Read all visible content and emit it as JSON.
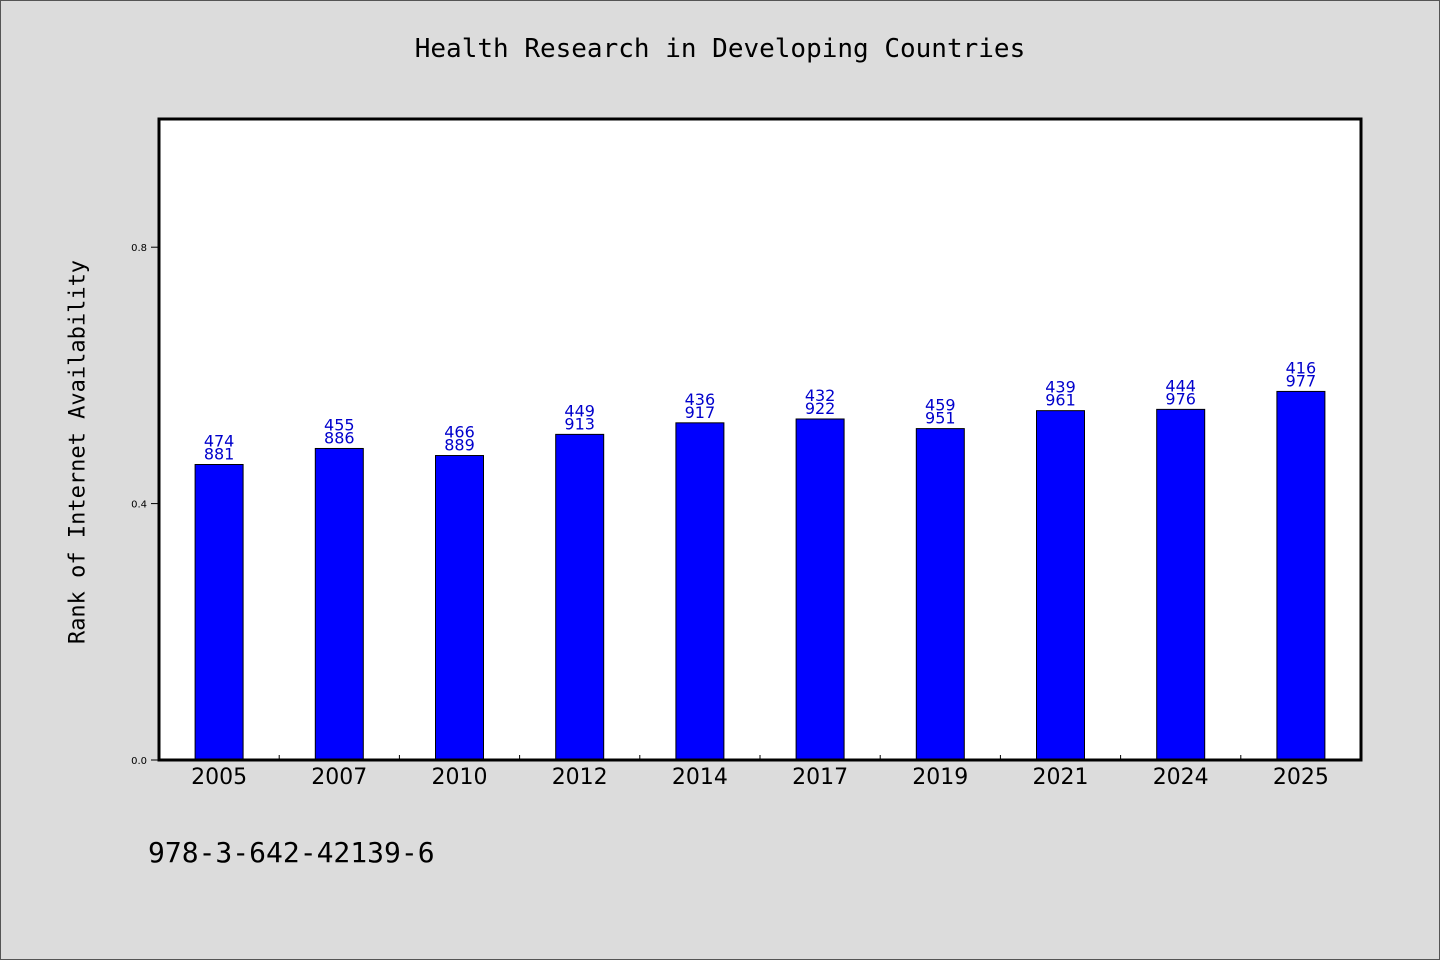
{
  "chart_data": {
    "type": "bar",
    "title": "Health Research in Developing Countries",
    "xlabel": "",
    "ylabel": "Rank of Internet Availability",
    "ylim": [
      0,
      1.0
    ],
    "yticks": [
      0.0,
      0.4,
      0.8
    ],
    "ytick_labels": [
      "0.0",
      "0.4",
      "0.8"
    ],
    "grid": false,
    "categories": [
      "2005",
      "2007",
      "2010",
      "2012",
      "2014",
      "2017",
      "2019",
      "2021",
      "2024",
      "2025"
    ],
    "values": [
      0.461,
      0.486,
      0.475,
      0.508,
      0.526,
      0.532,
      0.517,
      0.545,
      0.547,
      0.575
    ],
    "data_labels": [
      [
        "474",
        "881"
      ],
      [
        "455",
        "886"
      ],
      [
        "466",
        "889"
      ],
      [
        "449",
        "913"
      ],
      [
        "436",
        "917"
      ],
      [
        "432",
        "922"
      ],
      [
        "459",
        "951"
      ],
      [
        "439",
        "961"
      ],
      [
        "444",
        "976"
      ],
      [
        "416",
        "977"
      ]
    ],
    "bar_color": "#0000ff",
    "label_color": "#0000cc"
  },
  "footer": {
    "isbn": "978-3-642-42139-6"
  }
}
